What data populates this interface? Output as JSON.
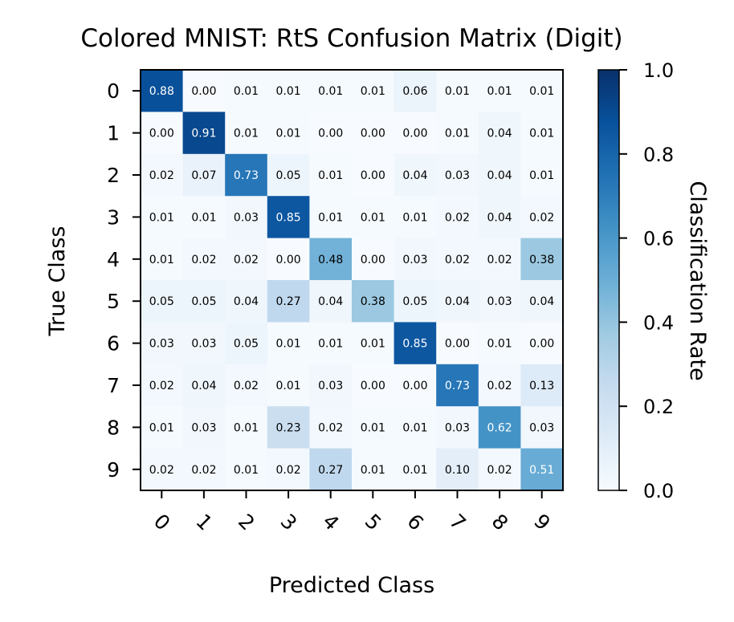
{
  "chart_data": {
    "type": "heatmap",
    "title": "Colored MNIST: RtS Confusion Matrix (Digit)",
    "xlabel": "Predicted Class",
    "ylabel": "True Class",
    "x_categories": [
      "0",
      "1",
      "2",
      "3",
      "4",
      "5",
      "6",
      "7",
      "8",
      "9"
    ],
    "y_categories": [
      "0",
      "1",
      "2",
      "3",
      "4",
      "5",
      "6",
      "7",
      "8",
      "9"
    ],
    "values": [
      [
        0.88,
        0.0,
        0.01,
        0.01,
        0.01,
        0.01,
        0.06,
        0.01,
        0.01,
        0.01
      ],
      [
        0.0,
        0.91,
        0.01,
        0.01,
        0.0,
        0.0,
        0.0,
        0.01,
        0.04,
        0.01
      ],
      [
        0.02,
        0.07,
        0.73,
        0.05,
        0.01,
        0.0,
        0.04,
        0.03,
        0.04,
        0.01
      ],
      [
        0.01,
        0.01,
        0.03,
        0.85,
        0.01,
        0.01,
        0.01,
        0.02,
        0.04,
        0.02
      ],
      [
        0.01,
        0.02,
        0.02,
        0.0,
        0.48,
        0.0,
        0.03,
        0.02,
        0.02,
        0.38
      ],
      [
        0.05,
        0.05,
        0.04,
        0.27,
        0.04,
        0.38,
        0.05,
        0.04,
        0.03,
        0.04
      ],
      [
        0.03,
        0.03,
        0.05,
        0.01,
        0.01,
        0.01,
        0.85,
        0.0,
        0.01,
        0.0
      ],
      [
        0.02,
        0.04,
        0.02,
        0.01,
        0.03,
        0.0,
        0.0,
        0.73,
        0.02,
        0.13
      ],
      [
        0.01,
        0.03,
        0.01,
        0.23,
        0.02,
        0.01,
        0.01,
        0.03,
        0.62,
        0.03
      ],
      [
        0.02,
        0.02,
        0.01,
        0.02,
        0.27,
        0.01,
        0.01,
        0.1,
        0.02,
        0.51
      ]
    ],
    "colorbar": {
      "label": "Classification Rate",
      "range": [
        0.0,
        1.0
      ],
      "ticks": [
        "0.0",
        "0.2",
        "0.4",
        "0.6",
        "0.8",
        "1.0"
      ],
      "colormap": "Blues"
    },
    "colors": {
      "low": "#f7fbff",
      "high": "#08306b",
      "text_dark": "#000000",
      "text_light": "#ffffff"
    }
  }
}
